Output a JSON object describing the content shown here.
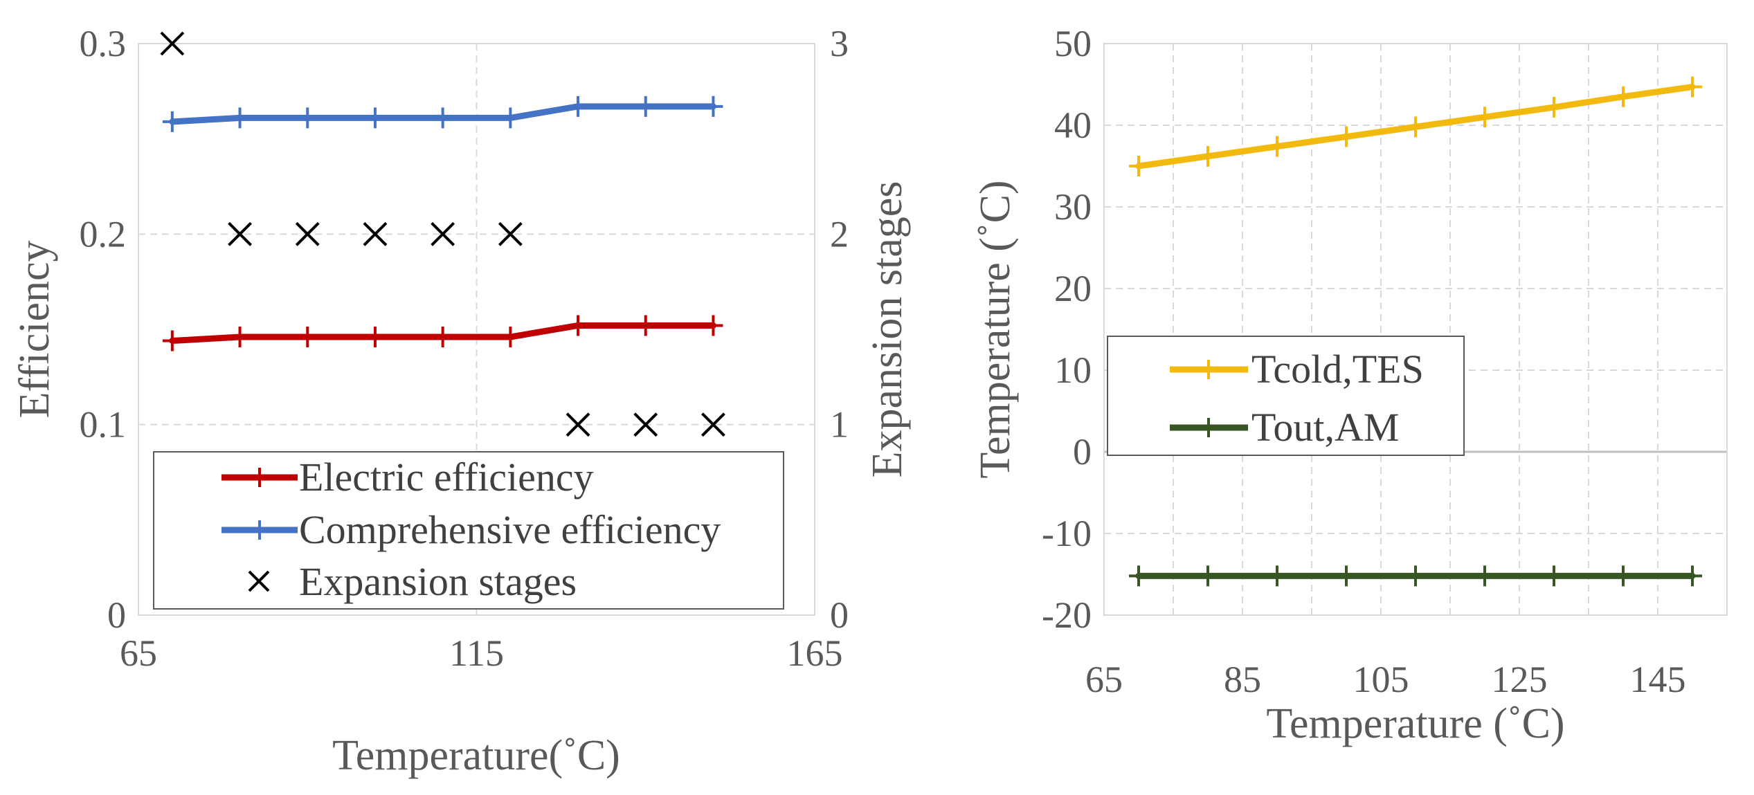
{
  "chart_data": [
    {
      "type": "line",
      "title": "",
      "xlabel": "Temperature(˚C)",
      "ylabel": "Efficiency",
      "y2label": "Expansion stages",
      "xlim": [
        65,
        165
      ],
      "ylim": [
        0,
        0.3
      ],
      "y2lim": [
        0,
        3
      ],
      "x_ticks": [
        "65",
        "115",
        "165"
      ],
      "y_ticks": [
        "0",
        "0.1",
        "0.2",
        "0.3"
      ],
      "y2_ticks": [
        "0",
        "1",
        "2",
        "3"
      ],
      "x": [
        70,
        80,
        90,
        100,
        110,
        120,
        130,
        140,
        150
      ],
      "series": [
        {
          "name": "Electric efficiency",
          "axis": "left",
          "color": "#c00000",
          "marker": "plus",
          "values": [
            0.144,
            0.146,
            0.146,
            0.146,
            0.146,
            0.146,
            0.152,
            0.152,
            0.152
          ]
        },
        {
          "name": "Comprehensive efficiency",
          "axis": "left",
          "color": "#4472c4",
          "marker": "plus",
          "values": [
            0.259,
            0.261,
            0.261,
            0.261,
            0.261,
            0.261,
            0.267,
            0.267,
            0.267
          ]
        },
        {
          "name": "Expansion stages",
          "axis": "right",
          "color": "#000000",
          "marker": "x",
          "line": false,
          "values": [
            3,
            2,
            2,
            2,
            2,
            2,
            1,
            1,
            1
          ]
        }
      ],
      "legend": {
        "placement": "bottom-left",
        "items": [
          "Electric efficiency",
          "Comprehensive efficiency",
          "Expansion stages"
        ]
      }
    },
    {
      "type": "line",
      "title": "",
      "xlabel": "Temperature (˚C)",
      "ylabel": "Temperature (˚C)",
      "xlim": [
        65,
        155
      ],
      "ylim": [
        -20,
        50
      ],
      "x_ticks": [
        "65",
        "85",
        "105",
        "125",
        "145"
      ],
      "y_ticks": [
        "-20",
        "-10",
        "0",
        "10",
        "20",
        "30",
        "40",
        "50"
      ],
      "x": [
        70,
        80,
        90,
        100,
        110,
        120,
        130,
        140,
        150
      ],
      "series": [
        {
          "name": "Tcold,TES",
          "color": "#f2b90f",
          "marker": "plus",
          "values": [
            35,
            36.2,
            37.4,
            38.6,
            39.8,
            41,
            42.2,
            43.5,
            44.7
          ]
        },
        {
          "name": "Tout,AM",
          "color": "#375623",
          "marker": "plus",
          "values": [
            -15.2,
            -15.2,
            -15.2,
            -15.2,
            -15.2,
            -15.2,
            -15.2,
            -15.2,
            -15.2
          ]
        }
      ],
      "legend": {
        "placement": "center-left",
        "items": [
          "Tcold,TES",
          "Tout,AM"
        ]
      }
    }
  ]
}
